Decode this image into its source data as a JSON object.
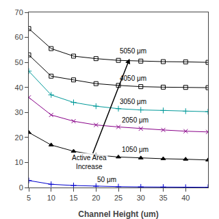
{
  "chart_data": {
    "type": "line",
    "xlabel": "Channel Height (um)",
    "xlim": [
      5,
      45
    ],
    "ylim": [
      0,
      70
    ],
    "xticks": [
      5,
      10,
      15,
      20,
      25,
      30,
      35,
      40
    ],
    "yticks": [
      0,
      10,
      20,
      30,
      40,
      50,
      60,
      70
    ],
    "grid": false,
    "x": [
      5,
      10,
      15,
      20,
      25,
      30,
      35,
      40,
      45
    ],
    "series": [
      {
        "name": "5050 μm",
        "color": "#000000",
        "marker": "square-open",
        "values": [
          63.5,
          55.5,
          52.5,
          51.5,
          50.8,
          50.5,
          50.3,
          50.2,
          50.0
        ],
        "label": {
          "x": 25.0,
          "y": 52.5
        }
      },
      {
        "name": "4050 μm",
        "color": "#000000",
        "marker": "square-open",
        "values": [
          53.0,
          44.5,
          43.0,
          41.5,
          40.8,
          40.3,
          40.1,
          40.0,
          39.9
        ],
        "label": {
          "x": 25.0,
          "y": 41.5
        }
      },
      {
        "name": "3050 μm",
        "color": "#009999",
        "marker": "cross-thin-open",
        "values": [
          46.5,
          37.0,
          34.0,
          32.5,
          31.5,
          31.0,
          30.8,
          30.5,
          30.3
        ],
        "label": {
          "x": 25.0,
          "y": 32.2
        }
      },
      {
        "name": "2050 μm",
        "color": "#880088",
        "marker": "x-thin-open",
        "values": [
          36.0,
          29.0,
          26.5,
          25.0,
          24.2,
          23.5,
          23.0,
          22.5,
          22.2
        ],
        "label": {
          "x": 25.5,
          "y": 25.0
        }
      },
      {
        "name": "1050 μm",
        "color": "#000000",
        "marker": "triangle-up",
        "values": [
          22.0,
          17.0,
          14.5,
          13.0,
          12.2,
          11.8,
          11.5,
          11.3,
          11.0
        ],
        "label": {
          "x": 25.5,
          "y": 13.0
        }
      },
      {
        "name": "50 μm",
        "color": "#0000cc",
        "marker": "cross-thin-open",
        "values": [
          2.8,
          1.3,
          0.8,
          0.5,
          0.35,
          0.25,
          0.18,
          0.12,
          0.1
        ],
        "label": {
          "x": 20.0,
          "y": 1.0
        }
      }
    ],
    "annotations": [
      {
        "text": "Active Area\nIncrease",
        "x": 18.5,
        "y": 10.0,
        "arrow_x": 27.5,
        "arrow_y": 51.5
      }
    ]
  }
}
